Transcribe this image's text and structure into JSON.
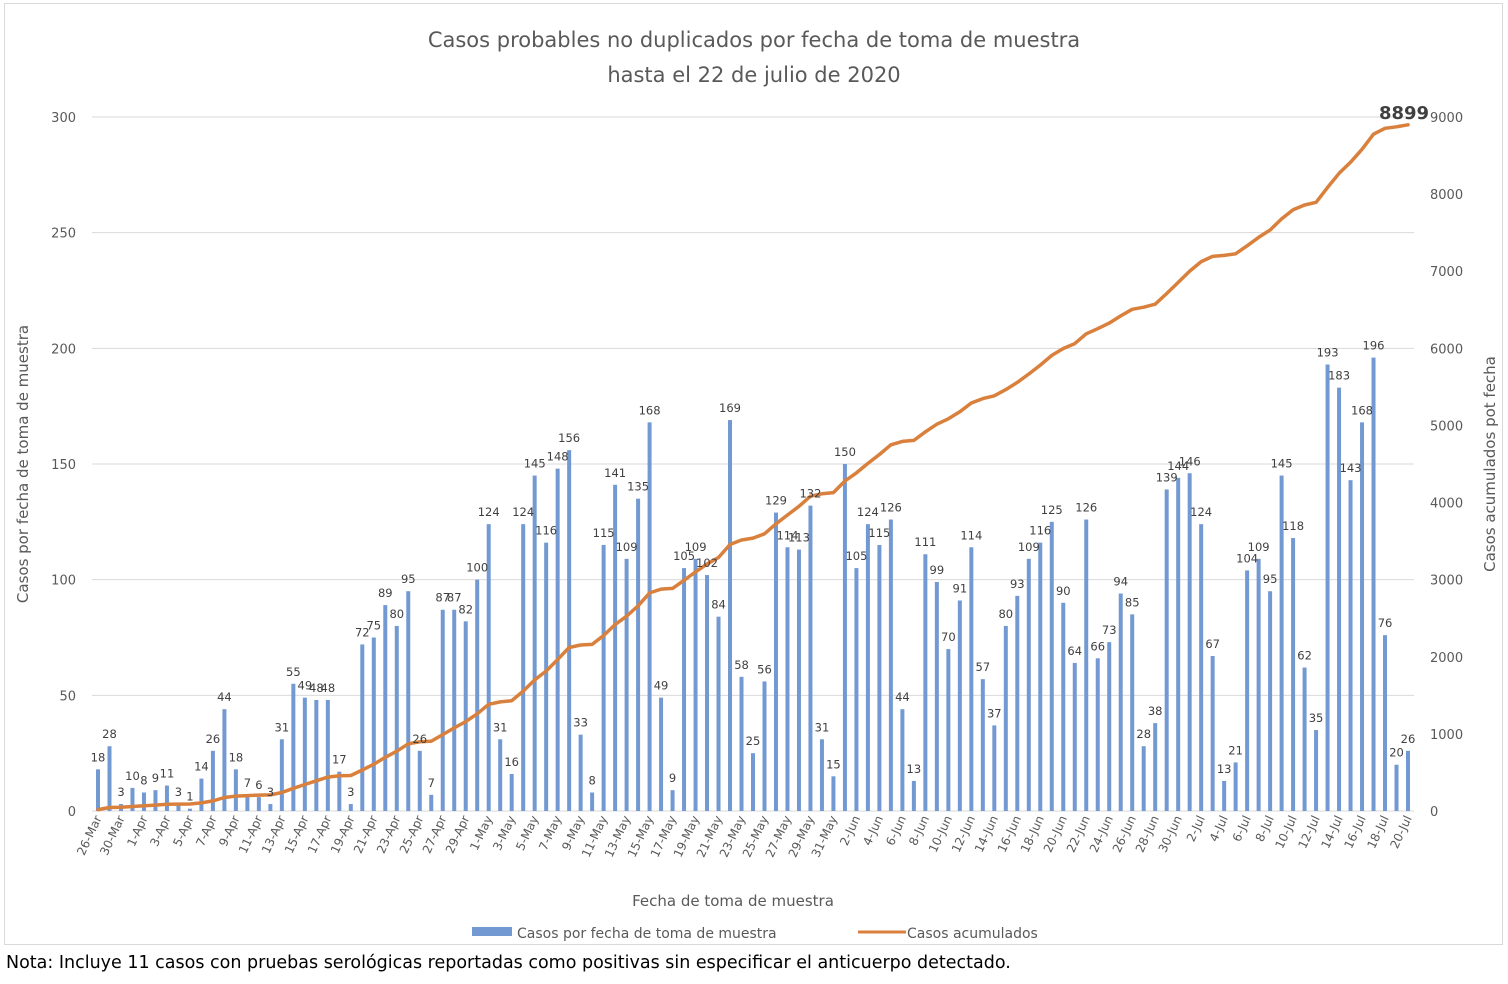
{
  "chart_data": {
    "type": "bar+line",
    "title": [
      "Casos probables no duplicados por fecha de toma de muestra",
      "hasta el 22 de julio de 2020"
    ],
    "xlabel": "Fecha de toma de muestra",
    "ylabel": "Casos por fecha de toma de muestra",
    "y2label": "Casos acumulados pot fecha",
    "ylim": [
      0,
      300
    ],
    "y_ticks": [
      0,
      50,
      100,
      150,
      200,
      250,
      300
    ],
    "y2lim": [
      0,
      9000
    ],
    "y2_ticks": [
      0,
      1000,
      2000,
      3000,
      4000,
      5000,
      6000,
      7000,
      8000,
      9000
    ],
    "grid": true,
    "legend_position": "bottom",
    "colors": {
      "bars": "#7399d2",
      "line": "#d9803d",
      "grid": "#d9d9d9",
      "text": "#595959"
    },
    "categories": [
      "26-Mar",
      "28-Mar",
      "30-Mar",
      "31-Mar",
      "1-Apr",
      "2-Apr",
      "3-Apr",
      "4-Apr",
      "5-Apr",
      "6-Apr",
      "7-Apr",
      "8-Apr",
      "9-Apr",
      "10-Apr",
      "11-Apr",
      "12-Apr",
      "13-Apr",
      "14-Apr",
      "15-Apr",
      "16-Apr",
      "17-Apr",
      "18-Apr",
      "19-Apr",
      "20-Apr",
      "21-Apr",
      "22-Apr",
      "23-Apr",
      "24-Apr",
      "25-Apr",
      "26-Apr",
      "27-Apr",
      "28-Apr",
      "29-Apr",
      "30-Apr",
      "1-May",
      "2-May",
      "3-May",
      "4-May",
      "5-May",
      "6-May",
      "7-May",
      "8-May",
      "9-May",
      "10-May",
      "11-May",
      "12-May",
      "13-May",
      "14-May",
      "15-May",
      "16-May",
      "17-May",
      "18-May",
      "19-May",
      "20-May",
      "21-May",
      "22-May",
      "23-May",
      "24-May",
      "25-May",
      "26-May",
      "27-May",
      "28-May",
      "29-May",
      "30-May",
      "31-May",
      "1-Jun",
      "2-Jun",
      "3-Jun",
      "4-Jun",
      "5-Jun",
      "6-Jun",
      "7-Jun",
      "8-Jun",
      "9-Jun",
      "10-Jun",
      "11-Jun",
      "12-Jun",
      "13-Jun",
      "14-Jun",
      "15-Jun",
      "16-Jun",
      "17-Jun",
      "18-Jun",
      "19-Jun",
      "20-Jun",
      "21-Jun",
      "22-Jun",
      "23-Jun",
      "24-Jun",
      "25-Jun",
      "26-Jun",
      "27-Jun",
      "28-Jun",
      "29-Jun",
      "30-Jun",
      "1-Jul",
      "2-Jul",
      "3-Jul",
      "4-Jul",
      "5-Jul",
      "6-Jul",
      "7-Jul",
      "8-Jul",
      "9-Jul",
      "10-Jul",
      "11-Jul",
      "12-Jul",
      "13-Jul",
      "14-Jul",
      "15-Jul",
      "16-Jul",
      "17-Jul",
      "18-Jul",
      "19-Jul",
      "20-Jul"
    ],
    "x_tick_labels": [
      "26-Mar",
      "30-Mar",
      "1-Apr",
      "3-Apr",
      "5-Apr",
      "7-Apr",
      "9-Apr",
      "11-Apr",
      "13-Apr",
      "15-Apr",
      "17-Apr",
      "19-Apr",
      "21-Apr",
      "23-Apr",
      "25-Apr",
      "27-Apr",
      "29-Apr",
      "1-May",
      "3-May",
      "5-May",
      "7-May",
      "9-May",
      "11-May",
      "13-May",
      "15-May",
      "17-May",
      "19-May",
      "21-May",
      "23-May",
      "25-May",
      "27-May",
      "29-May",
      "31-May",
      "2-Jun",
      "4-Jun",
      "6-Jun",
      "8-Jun",
      "10-Jun",
      "12-Jun",
      "14-Jun",
      "16-Jun",
      "18-Jun",
      "20-Jun",
      "22-Jun",
      "24-Jun",
      "26-Jun",
      "28-Jun",
      "30-Jun",
      "2-Jul",
      "4-Jul",
      "6-Jul",
      "8-Jul",
      "10-Jul",
      "12-Jul",
      "14-Jul",
      "16-Jul",
      "18-Jul",
      "20-Jul"
    ],
    "series": [
      {
        "name": "Casos por fecha de toma de muestra",
        "type": "bar",
        "axis": "left",
        "values": [
          18,
          28,
          3,
          10,
          8,
          9,
          11,
          3,
          1,
          14,
          26,
          44,
          18,
          7,
          6,
          3,
          31,
          55,
          49,
          48,
          48,
          17,
          3,
          72,
          75,
          89,
          80,
          95,
          26,
          7,
          87,
          87,
          82,
          100,
          124,
          31,
          16,
          124,
          145,
          116,
          148,
          156,
          33,
          8,
          115,
          141,
          109,
          135,
          168,
          49,
          9,
          105,
          109,
          102,
          84,
          169,
          58,
          25,
          56,
          129,
          114,
          113,
          132,
          31,
          15,
          150,
          105,
          124,
          115,
          126,
          44,
          13,
          111,
          99,
          70,
          91,
          114,
          57,
          37,
          80,
          93,
          109,
          116,
          125,
          90,
          64,
          126,
          66,
          73,
          94,
          85,
          28,
          38,
          139,
          144,
          146,
          124,
          67,
          13,
          21,
          104,
          109,
          95,
          145,
          118,
          62,
          35,
          193,
          183,
          143,
          168,
          196,
          76,
          20,
          26
        ]
      },
      {
        "name": "Casos acumulados",
        "type": "line",
        "axis": "right",
        "computed": "running_sum",
        "end_label": "8899",
        "end_value": 8899
      }
    ]
  },
  "note": "Nota: Incluye 11 casos con pruebas serológicas reportadas como positivas sin especificar el anticuerpo detectado."
}
